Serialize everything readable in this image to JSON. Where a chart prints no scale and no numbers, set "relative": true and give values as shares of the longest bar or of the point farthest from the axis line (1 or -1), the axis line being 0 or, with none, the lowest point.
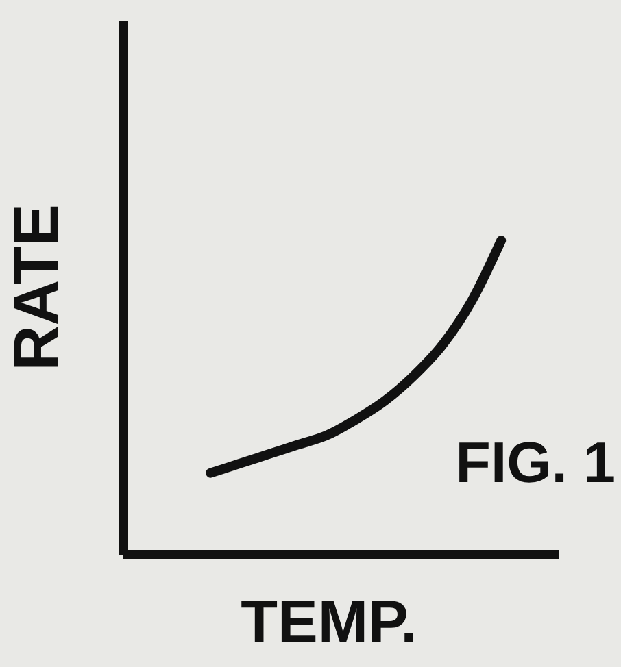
{
  "chart_data": {
    "type": "line",
    "relative": true,
    "xlabel": "TEMP.",
    "ylabel": "RATE",
    "annotations": [
      "FIG. 1"
    ],
    "categories": [
      null,
      null,
      null,
      null,
      null,
      null,
      null,
      null,
      null,
      null,
      null,
      null,
      null,
      null,
      null,
      null
    ],
    "series": [
      {
        "color": "#111111",
        "values": [
          null,
          null,
          null,
          0.26,
          0.29,
          0.32,
          0.35,
          0.38,
          0.43,
          0.49,
          0.57,
          0.67,
          0.81,
          1,
          null,
          null
        ]
      }
    ],
    "marker": "none",
    "line_style": "solid",
    "grid": false,
    "legend": false
  }
}
